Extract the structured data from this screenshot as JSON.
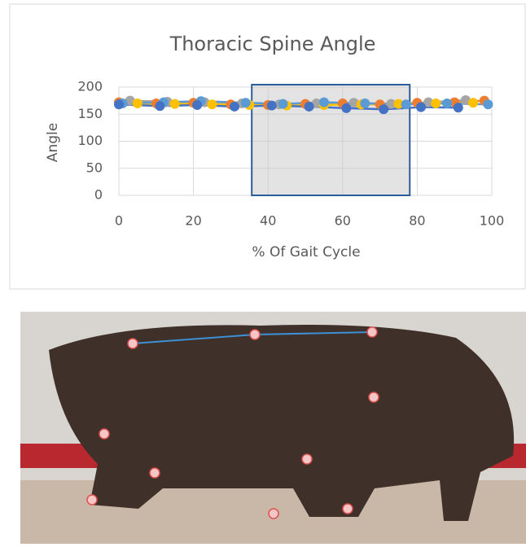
{
  "chart_data": {
    "type": "line",
    "title": "Thoracic Spine Angle",
    "x_label": "% Of Gait Cycle",
    "y_label": "Angle",
    "xlim": [
      0,
      100
    ],
    "xticks": [
      0,
      20,
      40,
      60,
      80,
      100
    ],
    "ylim": [
      0,
      200
    ],
    "yticks": [
      0,
      50,
      100,
      150,
      200
    ],
    "grid": true,
    "highlight_x": [
      40,
      78
    ],
    "series": [
      {
        "color": "#ed7d31",
        "x": [
          0,
          10,
          20,
          30,
          40,
          50,
          60,
          70,
          80,
          90,
          98
        ],
        "values": [
          172,
          170,
          171,
          168,
          167,
          169,
          170,
          168,
          171,
          172,
          175
        ]
      },
      {
        "color": "#a5a5a5",
        "x": [
          3,
          13,
          23,
          33,
          43,
          53,
          63,
          73,
          83,
          93
        ],
        "values": [
          175,
          173,
          172,
          170,
          168,
          170,
          171,
          169,
          172,
          176
        ]
      },
      {
        "color": "#ffc000",
        "x": [
          5,
          15,
          25,
          35,
          45,
          55,
          65,
          75,
          85,
          95
        ],
        "values": [
          170,
          169,
          168,
          167,
          166,
          167,
          168,
          169,
          170,
          171
        ]
      },
      {
        "color": "#5b9bd5",
        "x": [
          1,
          12,
          22,
          34,
          44,
          55,
          66,
          77,
          88,
          99
        ],
        "values": [
          170,
          172,
          174,
          171,
          169,
          172,
          170,
          168,
          170,
          168
        ]
      },
      {
        "color": "#4472c4",
        "x": [
          0,
          11,
          21,
          31,
          41,
          51,
          61,
          71,
          81,
          91
        ],
        "values": [
          168,
          165,
          167,
          164,
          166,
          164,
          161,
          159,
          163,
          162
        ]
      }
    ]
  }
}
